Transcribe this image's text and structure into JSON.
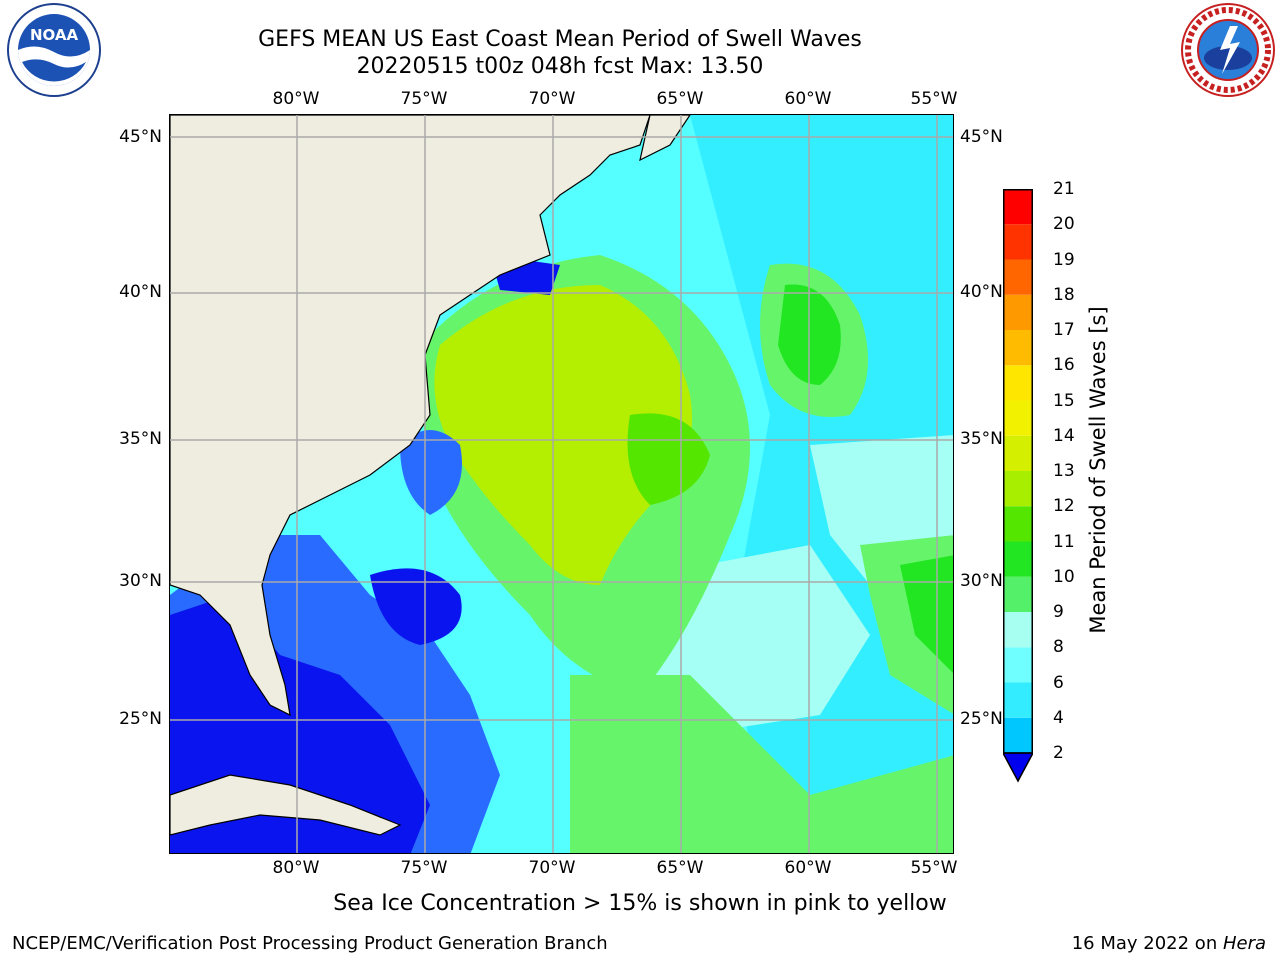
{
  "title": {
    "line1": "GEFS MEAN US East Coast Mean Period of Swell Waves",
    "line2": "20220515 t00z 048h fcst   Max: 13.50"
  },
  "logos": {
    "left": {
      "icon": "noaa-logo",
      "text": "NOAA"
    },
    "right": {
      "icon": "nws-logo",
      "ring_text": "NATIONAL WEATHER SERVICE"
    }
  },
  "axes": {
    "lon_labels": [
      "80°W",
      "75°W",
      "70°W",
      "65°W",
      "60°W",
      "55°W"
    ],
    "lat_labels": [
      "45°N",
      "40°N",
      "35°N",
      "30°N",
      "25°N"
    ]
  },
  "colorbar": {
    "title": "Mean Period of Swell Waves [s]",
    "tick_labels": [
      "2",
      "4",
      "6",
      "8",
      "9",
      "10",
      "11",
      "12",
      "13",
      "14",
      "15",
      "16",
      "17",
      "18",
      "19",
      "20",
      "21"
    ],
    "colors": [
      "#0a5cff",
      "#00c8ff",
      "#33ecff",
      "#70ffff",
      "#a6fff0",
      "#55f06a",
      "#22e622",
      "#55e600",
      "#a8ee00",
      "#d4f000",
      "#f2f200",
      "#ffe600",
      "#ffbb00",
      "#ff9900",
      "#ff6600",
      "#ff3300",
      "#ff0000"
    ],
    "extend_color": "#0000ee"
  },
  "map_colors": {
    "land": "#eeeddf",
    "deep_blue": "#0a14ee",
    "blue": "#2a6bff",
    "cyan": "#00e8ff",
    "light_cyan": "#55ffff",
    "pale_cyan": "#a6fff4",
    "light_green": "#66f56a",
    "green": "#22e622",
    "yellow_green": "#b4ee00",
    "grid": "#aaaaaa"
  },
  "caption": "Sea Ice Concentration > 15% is shown in pink to yellow",
  "footer": {
    "left": "NCEP/EMC/Verification Post Processing Product Generation Branch",
    "right_date": "16 May 2022 on ",
    "right_host": "Hera"
  }
}
